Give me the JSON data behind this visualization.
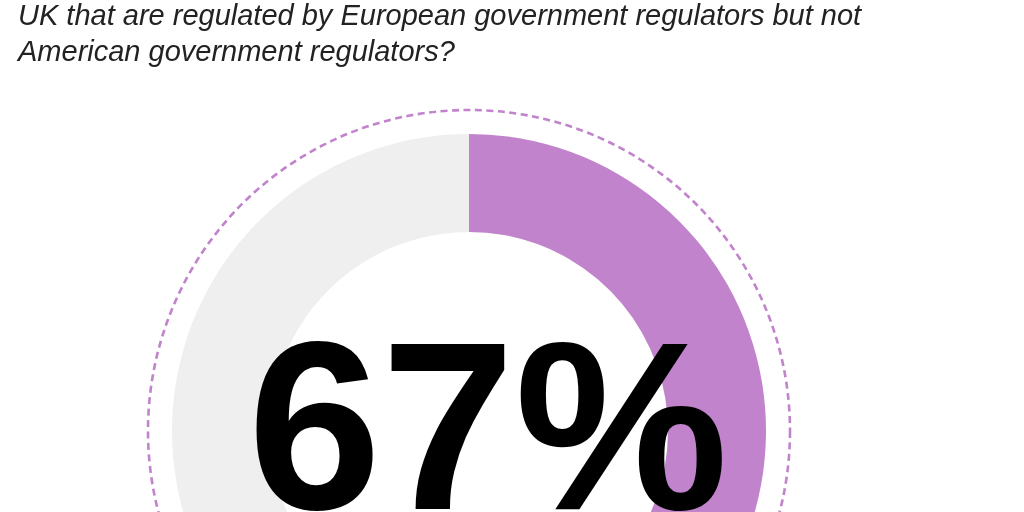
{
  "chart_data": {
    "type": "donut",
    "title": "UK that are regulated by European government regulators but not American government regulators?",
    "categories": [
      null,
      null
    ],
    "values": [
      67,
      33
    ],
    "colors": [
      "#c183cc",
      "#efefef"
    ],
    "value_labels": [
      "67%",
      null
    ]
  }
}
